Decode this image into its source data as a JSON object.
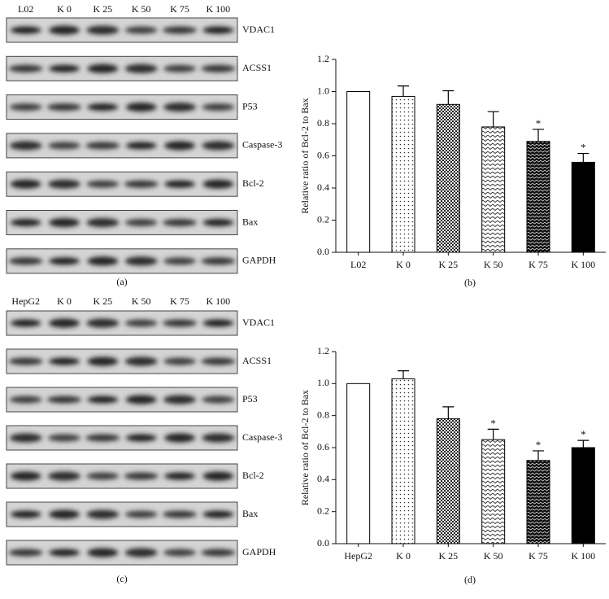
{
  "blots": [
    {
      "lanes": [
        "L02",
        "K 0",
        "K 25",
        "K 50",
        "K 75",
        "K 100"
      ],
      "rows": [
        "VDAC1",
        "ACSS1",
        "P53",
        "Caspase-3",
        "Bcl-2",
        "Bax",
        "GAPDH"
      ],
      "caption": "(a)"
    },
    {
      "lanes": [
        "HepG2",
        "K 0",
        "K 25",
        "K 50",
        "K 75",
        "K 100"
      ],
      "rows": [
        "VDAC1",
        "ACSS1",
        "P53",
        "Caspase-3",
        "Bcl-2",
        "Bax",
        "GAPDH"
      ],
      "caption": "(c)"
    }
  ],
  "chart_data": [
    {
      "type": "bar",
      "caption": "(b)",
      "y_label": "Relative ratio of Bcl-2 to Bax",
      "categories": [
        "L02",
        "K 0",
        "K 25",
        "K 50",
        "K 75",
        "K 100"
      ],
      "values": [
        1.0,
        0.97,
        0.92,
        0.78,
        0.69,
        0.56
      ],
      "errors": [
        0,
        0.065,
        0.085,
        0.095,
        0.075,
        0.055
      ],
      "fills": [
        "white",
        "dots",
        "checker",
        "chevron",
        "dense-chevron",
        "black"
      ],
      "annotations": [
        {
          "category": "K 75",
          "text": "*"
        },
        {
          "category": "K 100",
          "text": "*"
        }
      ],
      "ylim": [
        0,
        1.2
      ],
      "yticks": [
        {
          "value": 0,
          "label": "0.0"
        },
        {
          "value": 0.2,
          "label": "0.2"
        },
        {
          "value": 0.4,
          "label": "0.4"
        },
        {
          "value": 0.6,
          "label": "0.6"
        },
        {
          "value": 0.8,
          "label": "0.8"
        },
        {
          "value": 1.0,
          "label": "1.0"
        },
        {
          "value": 1.2,
          "label": "1.2"
        }
      ]
    },
    {
      "type": "bar",
      "caption": "(d)",
      "y_label": "Relative ratio of Bcl-2 to Bax",
      "categories": [
        "HepG2",
        "K 0",
        "K 25",
        "K 50",
        "K 75",
        "K 100"
      ],
      "values": [
        1.0,
        1.03,
        0.78,
        0.65,
        0.52,
        0.6
      ],
      "errors": [
        0,
        0.05,
        0.075,
        0.065,
        0.06,
        0.045
      ],
      "fills": [
        "white",
        "dots",
        "checker",
        "chevron",
        "dense-chevron",
        "black"
      ],
      "annotations": [
        {
          "category": "K 50",
          "text": "*"
        },
        {
          "category": "K 75",
          "text": "*"
        },
        {
          "category": "K 100",
          "text": "*"
        }
      ],
      "ylim": [
        0,
        1.2
      ],
      "yticks": [
        {
          "value": 0,
          "label": "0.0"
        },
        {
          "value": 0.2,
          "label": "0.2"
        },
        {
          "value": 0.4,
          "label": "0.4"
        },
        {
          "value": 0.6,
          "label": "0.6"
        },
        {
          "value": 0.8,
          "label": "0.8"
        },
        {
          "value": 1.0,
          "label": "1.0"
        },
        {
          "value": 1.2,
          "label": "1.2"
        }
      ]
    }
  ]
}
